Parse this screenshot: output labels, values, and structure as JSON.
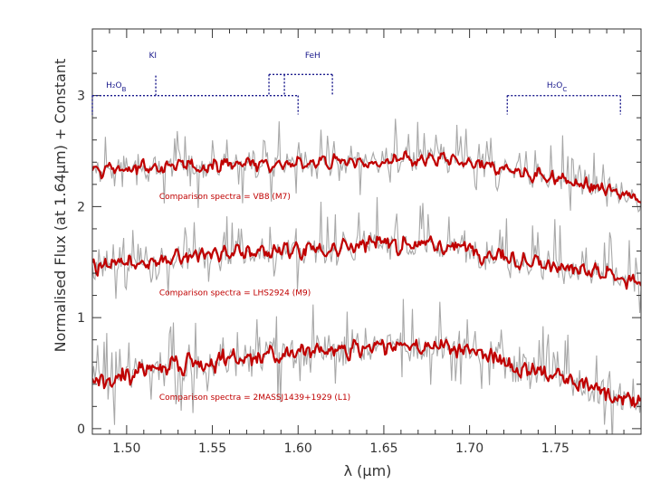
{
  "chart_data": {
    "type": "line",
    "xlabel": "λ (μm)",
    "ylabel": "Normalised Flux (at 1.64μm) + Constant",
    "xlim": [
      1.48,
      1.8
    ],
    "ylim": [
      -0.05,
      3.6
    ],
    "x_ticks": [
      1.5,
      1.55,
      1.6,
      1.65,
      1.7,
      1.75
    ],
    "x_tick_labels": [
      "1.50",
      "1.55",
      "1.60",
      "1.65",
      "1.70",
      "1.75"
    ],
    "y_ticks": [
      0,
      1,
      2,
      3
    ],
    "y_tick_labels": [
      "0",
      "1",
      "2",
      "3"
    ],
    "grid": false,
    "colors": {
      "target": "#a8a8a8",
      "comparison": "#c00000",
      "features": "#1a1a8c",
      "axis": "#333333"
    },
    "series": [
      {
        "name": "VB8 (M7)",
        "label": "Comparison spectra = VB8 (M7)",
        "label_x": 1.519,
        "label_y": 2.07,
        "profile_x": [
          1.48,
          1.5,
          1.55,
          1.6,
          1.65,
          1.68,
          1.7,
          1.72,
          1.75,
          1.78,
          1.8
        ],
        "profile_y": [
          2.3,
          2.34,
          2.38,
          2.39,
          2.42,
          2.42,
          2.4,
          2.34,
          2.26,
          2.15,
          2.08
        ],
        "ripple": 0.045,
        "noise": 0.12
      },
      {
        "name": "LHS2924 (M9)",
        "label": "Comparison spectra = LHS2924 (M9)",
        "label_x": 1.519,
        "label_y": 1.2,
        "profile_x": [
          1.48,
          1.5,
          1.55,
          1.6,
          1.65,
          1.68,
          1.7,
          1.72,
          1.75,
          1.78,
          1.8
        ],
        "profile_y": [
          1.44,
          1.5,
          1.57,
          1.61,
          1.66,
          1.66,
          1.62,
          1.56,
          1.48,
          1.38,
          1.3
        ],
        "ripple": 0.055,
        "noise": 0.14
      },
      {
        "name": "2MASSJ1439+1929 (L1)",
        "label": "Comparison spectra = 2MASSJ1439+1929 (L1)",
        "label_x": 1.519,
        "label_y": 0.26,
        "profile_x": [
          1.48,
          1.5,
          1.55,
          1.6,
          1.65,
          1.68,
          1.7,
          1.72,
          1.75,
          1.78,
          1.8
        ],
        "profile_y": [
          0.4,
          0.5,
          0.6,
          0.68,
          0.74,
          0.76,
          0.7,
          0.6,
          0.48,
          0.33,
          0.25
        ],
        "ripple": 0.065,
        "noise": 0.16
      }
    ],
    "features": [
      {
        "id": "h2ob",
        "label": "H₂O",
        "sub": "B",
        "x_start": 1.48,
        "x_end": 1.6,
        "y_bar": 3.0,
        "y_tick_end": 2.83,
        "label_x": 1.488,
        "label_y": 3.07
      },
      {
        "id": "ki",
        "label": "KI",
        "sub": "",
        "x_start": 1.517,
        "x_end": 1.517,
        "y_bar": 3.0,
        "y_tick_end": 3.19,
        "label_x": 1.513,
        "label_y": 3.34
      },
      {
        "id": "feh",
        "label": "FeH",
        "sub": "",
        "x_start": 1.583,
        "x_end": 1.62,
        "y_bar": 3.19,
        "y_tick_end": 3.0,
        "mid_x": 1.592,
        "label_x": 1.604,
        "label_y": 3.34
      },
      {
        "id": "h2oc",
        "label": "H₂O",
        "sub": "C",
        "x_start": 1.722,
        "x_end": 1.788,
        "y_bar": 3.0,
        "y_tick_end": 2.83,
        "label_x": 1.745,
        "label_y": 3.07
      }
    ]
  }
}
